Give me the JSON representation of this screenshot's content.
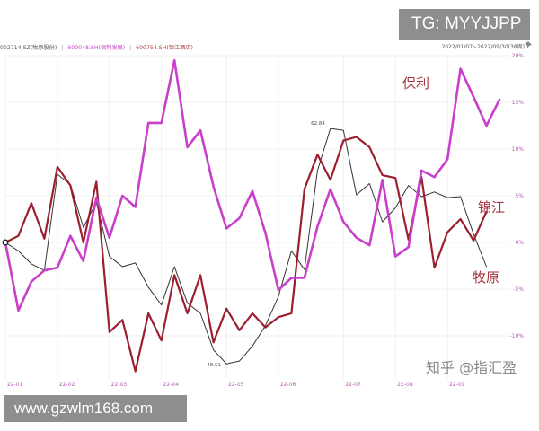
{
  "header": {
    "legend": [
      {
        "label": "002714.SZ(牧原股份)",
        "color": "#555555"
      },
      {
        "label": "600048.SH(保利发展)",
        "color": "#c93fc9"
      },
      {
        "label": "600754.SH(锦江酒店)",
        "color": "#b04040"
      }
    ],
    "separator": "|",
    "date_range": "2022/01/07~2022/09/30(38周)"
  },
  "overlays": {
    "tg_text": "TG: MYYJJPP",
    "site_text": "www.gzwlm168.com",
    "watermark_text": "知乎 @指汇盈"
  },
  "chart_data": {
    "type": "line",
    "title": "",
    "xlabel": "",
    "ylabel": "",
    "ylim": [
      -15,
      20
    ],
    "y_ticks": [
      20,
      15,
      10,
      5,
      0,
      -5,
      -10
    ],
    "y_tick_labels": [
      "20%",
      "15%",
      "10%",
      "5%",
      "0%",
      "-5%",
      "-10%"
    ],
    "x_ticks": [
      {
        "index": 0,
        "label": "22-01"
      },
      {
        "index": 4,
        "label": "22-02"
      },
      {
        "index": 8,
        "label": "22-03"
      },
      {
        "index": 12,
        "label": "22-04"
      },
      {
        "index": 17,
        "label": "22-05"
      },
      {
        "index": 21,
        "label": "22-06"
      },
      {
        "index": 26,
        "label": "22-07"
      },
      {
        "index": 30,
        "label": "22-08"
      },
      {
        "index": 34,
        "label": "22-09"
      }
    ],
    "series": [
      {
        "name": "保利",
        "legend_label": "600048.SH(保利发展)",
        "color": "#c93fc9",
        "values": [
          0,
          -7.3,
          -4.2,
          -3,
          -2.7,
          0.7,
          -2,
          4.8,
          0.5,
          5,
          3.8,
          12.8,
          12.8,
          19.5,
          10.2,
          12,
          6,
          1.5,
          2.6,
          5.5,
          1,
          -5.1,
          -3.8,
          -3.8,
          1.7,
          5.7,
          2.2,
          0.5,
          -0.3,
          6.7,
          -1.5,
          -0.5,
          7.7,
          7,
          8.9,
          18.6,
          15.6,
          12.5,
          15.3
        ]
      },
      {
        "name": "锦江",
        "legend_label": "600754.SH(锦江酒店)",
        "color": "#9b1f2f",
        "values": [
          0,
          0.7,
          4.2,
          0.4,
          8.1,
          6.1,
          0,
          6.5,
          -9.6,
          -8.3,
          -13.8,
          -7.6,
          -10.5,
          -3.5,
          -7.6,
          -3.5,
          -10.7,
          -7.1,
          -9.4,
          -7.6,
          -9.1,
          -8,
          -7.6,
          5.7,
          9.4,
          6.7,
          10.9,
          11.3,
          10.2,
          7.2,
          6.9,
          0.3,
          7,
          -2.7,
          1.1,
          2.5,
          0.2,
          3.3
        ]
      },
      {
        "name": "牧原",
        "legend_label": "002714.SZ(牧原股份)",
        "color": "#333333",
        "values": [
          0,
          -0.9,
          -2.3,
          -3,
          7.3,
          6.2,
          1.6,
          4.3,
          -1.5,
          -2.6,
          -2.2,
          -4.8,
          -6.7,
          -2.6,
          -6.5,
          -7.6,
          -11.5,
          -13,
          -12.7,
          -11.1,
          -8.9,
          -5.8,
          -0.9,
          -2.9,
          7.7,
          12.2,
          12,
          5.1,
          6.3,
          2.2,
          3.7,
          6.1,
          4.9,
          5.4,
          4.8,
          4.9,
          0.9,
          -2.6
        ]
      }
    ],
    "annotations": [
      {
        "text": "62.84",
        "series": "牧原",
        "index": 25
      },
      {
        "text": "48.51",
        "series": "牧原",
        "index": 17
      }
    ],
    "legend_placement": "right-inline"
  }
}
